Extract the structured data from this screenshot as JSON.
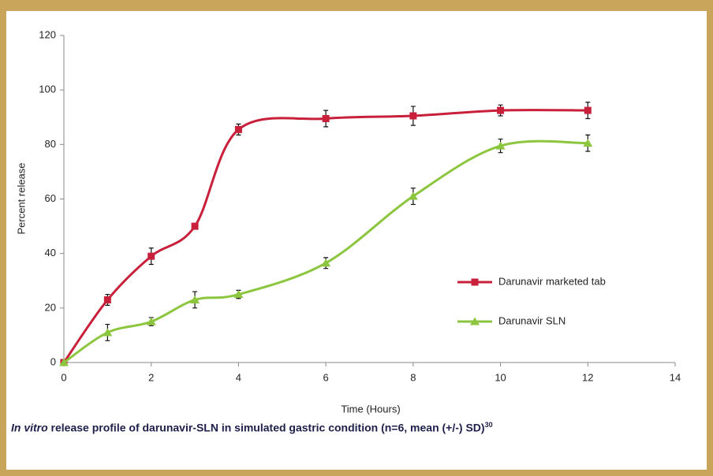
{
  "chart_data": {
    "type": "line",
    "x_label": "Time (Hours)",
    "y_label": "Percent release",
    "x": [
      0,
      1,
      2,
      3,
      4,
      6,
      8,
      10,
      12
    ],
    "series": [
      {
        "name": "Darunavir marketed tab",
        "color": "#c8203a",
        "marker": "square",
        "values": [
          0,
          23,
          39,
          50,
          85.5,
          89.5,
          90.5,
          92.5,
          92.5
        ],
        "errors": [
          0,
          2,
          3,
          1,
          2,
          3,
          3.5,
          2,
          3
        ]
      },
      {
        "name": "Darunavir SLN",
        "color": "#8cc63f",
        "marker": "triangle",
        "values": [
          0,
          11,
          15,
          23,
          25,
          36.5,
          61,
          79.5,
          80.5
        ],
        "errors": [
          0,
          3,
          1.5,
          3,
          1.5,
          2,
          3,
          2.5,
          3
        ]
      }
    ],
    "xlim": [
      0,
      14
    ],
    "xticks": [
      0,
      2,
      4,
      6,
      8,
      10,
      12,
      14
    ],
    "ylim": [
      0,
      120
    ],
    "yticks": [
      0,
      20,
      40,
      60,
      80,
      100,
      120
    ],
    "smooth": true,
    "legend": "right",
    "grid": false
  },
  "caption": {
    "italic": "In vitro",
    "text": " release profile of darunavir-SLN in simulated gastric condition (n=6, mean (+/-) SD)",
    "superscript": "30"
  }
}
